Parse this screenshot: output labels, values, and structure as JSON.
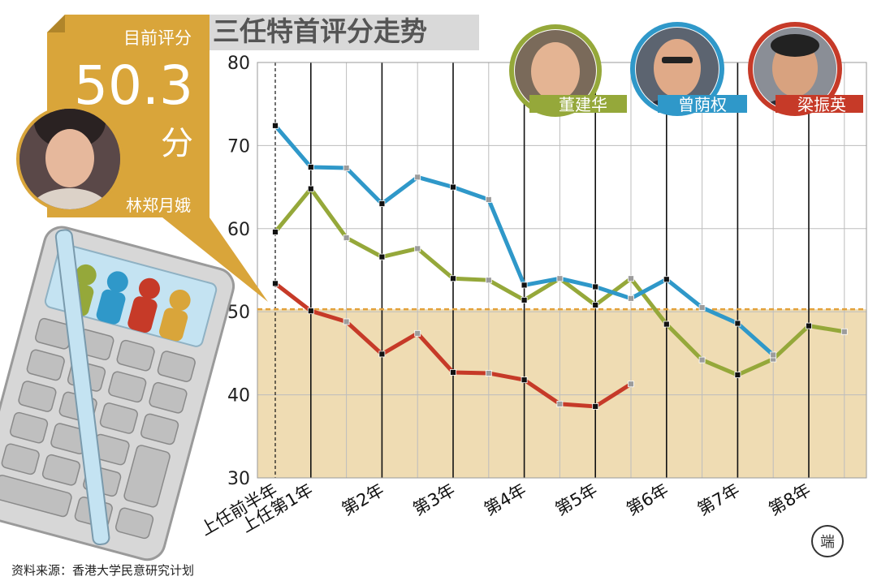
{
  "chart_data": {
    "type": "line",
    "title": "三任特首评分走势",
    "x_labels": [
      "上任前半年",
      "上任第1年",
      "第2年",
      "第3年",
      "第4年",
      "第5年",
      "第6年",
      "第7年",
      "第8年"
    ],
    "ylim": [
      30,
      80
    ],
    "yticks": [
      30,
      40,
      50,
      60,
      70,
      80
    ],
    "grid": true,
    "threshold": 50.3,
    "series": [
      {
        "name": "董建华",
        "color": "#95a83a",
        "values": [
          59.6,
          64.8,
          58.9,
          56.6,
          57.6,
          54.0,
          53.8,
          51.4,
          54.0,
          50.8,
          54.0,
          48.5,
          44.2,
          42.4,
          44.3,
          48.3,
          47.6
        ]
      },
      {
        "name": "曾荫权",
        "color": "#2f98c9",
        "values": [
          72.4,
          67.4,
          67.3,
          63.0,
          66.2,
          65.0,
          63.5,
          53.2,
          54.0,
          53.0,
          51.6,
          53.9,
          50.5,
          48.6,
          44.8
        ]
      },
      {
        "name": "梁振英",
        "color": "#c63a28",
        "values": [
          53.4,
          50.1,
          48.8,
          44.9,
          47.4,
          42.7,
          42.6,
          41.8,
          38.9,
          38.6,
          41.3
        ]
      }
    ],
    "current_score": {
      "label": "目前评分",
      "value": "50.3",
      "unit": "分",
      "name": "林郑月娥",
      "color": "#d9a53a"
    }
  },
  "source": "资料来源：香港大学民意研究计划",
  "logo_text": "端"
}
